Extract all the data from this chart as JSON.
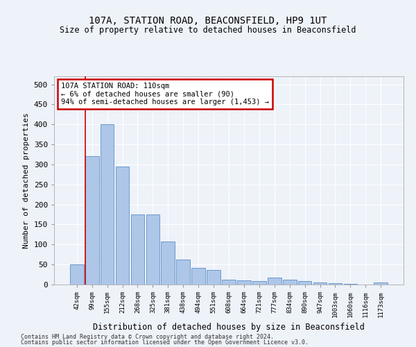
{
  "title": "107A, STATION ROAD, BEACONSFIELD, HP9 1UT",
  "subtitle": "Size of property relative to detached houses in Beaconsfield",
  "xlabel": "Distribution of detached houses by size in Beaconsfield",
  "ylabel": "Number of detached properties",
  "categories": [
    "42sqm",
    "99sqm",
    "155sqm",
    "212sqm",
    "268sqm",
    "325sqm",
    "381sqm",
    "438sqm",
    "494sqm",
    "551sqm",
    "608sqm",
    "664sqm",
    "721sqm",
    "777sqm",
    "834sqm",
    "890sqm",
    "947sqm",
    "1003sqm",
    "1060sqm",
    "1116sqm",
    "1173sqm"
  ],
  "values": [
    50,
    320,
    400,
    295,
    175,
    175,
    107,
    63,
    42,
    37,
    12,
    10,
    9,
    17,
    12,
    8,
    5,
    3,
    1,
    0,
    5
  ],
  "bar_color": "#aec6e8",
  "bar_edge_color": "#5b8fc7",
  "annotation_title": "107A STATION ROAD: 110sqm",
  "annotation_line1": "← 6% of detached houses are smaller (90)",
  "annotation_line2": "94% of semi-detached houses are larger (1,453) →",
  "annotation_box_color": "#ffffff",
  "annotation_box_edge": "#cc0000",
  "property_line_color": "#cc0000",
  "ylim": [
    0,
    520
  ],
  "yticks": [
    0,
    50,
    100,
    150,
    200,
    250,
    300,
    350,
    400,
    450,
    500
  ],
  "footer1": "Contains HM Land Registry data © Crown copyright and database right 2024.",
  "footer2": "Contains public sector information licensed under the Open Government Licence v3.0.",
  "bg_color": "#eef2f9",
  "grid_color": "#ffffff"
}
